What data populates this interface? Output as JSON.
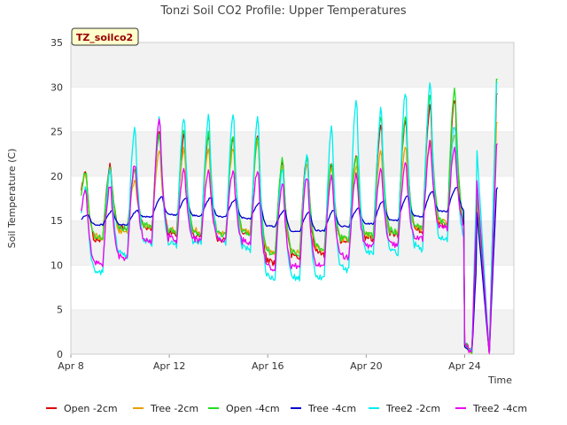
{
  "chart_data": {
    "type": "line",
    "title": "Tonzi Soil CO2 Profile: Upper Temperatures",
    "xlabel": "Time",
    "ylabel": "Soil Temperature (C)",
    "station_label": "TZ_soilco2",
    "x_start": "Apr 8",
    "x_end": "Apr 26",
    "xlim": [
      0,
      18
    ],
    "ylim": [
      0,
      35
    ],
    "y_ticks": [
      0,
      5,
      10,
      15,
      20,
      25,
      30,
      35
    ],
    "x_ticks": [
      {
        "day": 0,
        "label": "Apr 8"
      },
      {
        "day": 4,
        "label": "Apr 12"
      },
      {
        "day": 8,
        "label": "Apr 16"
      },
      {
        "day": 12,
        "label": "Apr 20"
      },
      {
        "day": 16,
        "label": "Apr 24"
      }
    ],
    "grid": "horizontal bands",
    "legend_position": "bottom",
    "series": [
      {
        "name": "Open -2cm",
        "color": "#dd0000",
        "day_max": [
          20.8,
          21.3,
          20.7,
          25.0,
          24.7,
          24.8,
          24.5,
          24.6,
          22.0,
          22.3,
          21.4,
          22.4,
          25.8,
          26.5,
          27.9,
          28.8,
          17.8,
          29.7
        ],
        "day_min": [
          15.0,
          12.5,
          14.0,
          14.0,
          13.2,
          13.0,
          12.5,
          13.2,
          10.0,
          10.8,
          11.0,
          12.5,
          12.8,
          13.2,
          13.7,
          14.2,
          0.0,
          15.0
        ]
      },
      {
        "name": "Tree -2cm",
        "color": "#e8a000",
        "day_max": [
          20.3,
          20.6,
          19.5,
          22.7,
          23.2,
          23.1,
          23.3,
          23.9,
          21.1,
          21.6,
          21.2,
          21.4,
          23.0,
          23.3,
          24.2,
          25.0,
          17.5,
          26.4
        ],
        "day_min": [
          14.5,
          13.0,
          13.6,
          14.2,
          13.8,
          13.6,
          13.4,
          13.5,
          11.2,
          11.3,
          11.6,
          12.6,
          13.2,
          13.5,
          14.0,
          14.6,
          0.0,
          15.4
        ]
      },
      {
        "name": "Open -4cm",
        "color": "#22dd22",
        "day_max": [
          20.5,
          21.0,
          20.6,
          24.7,
          25.3,
          24.9,
          24.5,
          24.7,
          22.0,
          22.2,
          21.7,
          22.5,
          26.7,
          27.0,
          29.3,
          29.9,
          18.0,
          31.4
        ],
        "day_min": [
          15.2,
          13.0,
          14.0,
          14.3,
          13.6,
          13.4,
          13.2,
          13.5,
          11.0,
          11.2,
          11.6,
          12.7,
          13.2,
          13.5,
          14.0,
          14.5,
          0.0,
          15.5
        ]
      },
      {
        "name": "Tree -4cm",
        "color": "#0000cc",
        "day_max": [
          15.7,
          16.1,
          16.1,
          17.7,
          17.5,
          17.6,
          17.4,
          17.1,
          16.2,
          16.0,
          16.2,
          16.4,
          17.2,
          17.8,
          18.3,
          18.8,
          16.0,
          18.8
        ],
        "day_min": [
          14.7,
          14.5,
          14.5,
          15.4,
          15.6,
          15.5,
          15.4,
          15.2,
          14.3,
          13.7,
          13.8,
          14.3,
          14.6,
          15.0,
          15.4,
          16.0,
          0.0,
          16.6
        ]
      },
      {
        "name": "Tree2 -2cm",
        "color": "#00eeee",
        "day_max": [
          18.6,
          21.0,
          25.5,
          26.5,
          26.8,
          26.9,
          26.8,
          26.6,
          21.1,
          22.5,
          25.7,
          28.8,
          27.6,
          29.5,
          30.5,
          26.0,
          23.0,
          31.0
        ],
        "day_min": [
          12.3,
          9.0,
          10.9,
          12.2,
          12.0,
          12.2,
          12.4,
          11.5,
          8.1,
          8.3,
          8.2,
          9.2,
          11.0,
          11.2,
          11.5,
          12.5,
          0.0,
          13.8
        ]
      },
      {
        "name": "Tree2 -4cm",
        "color": "#ee00ee",
        "day_max": [
          18.4,
          19.0,
          21.5,
          26.4,
          20.9,
          20.6,
          20.7,
          20.8,
          19.4,
          20.1,
          20.1,
          20.3,
          21.0,
          21.6,
          23.9,
          23.4,
          19.6,
          23.9
        ],
        "day_min": [
          13.0,
          10.0,
          10.7,
          12.6,
          12.6,
          12.6,
          12.8,
          12.4,
          9.4,
          9.6,
          9.6,
          10.7,
          12.0,
          12.1,
          12.8,
          14.0,
          0.0,
          15.6
        ]
      }
    ]
  }
}
